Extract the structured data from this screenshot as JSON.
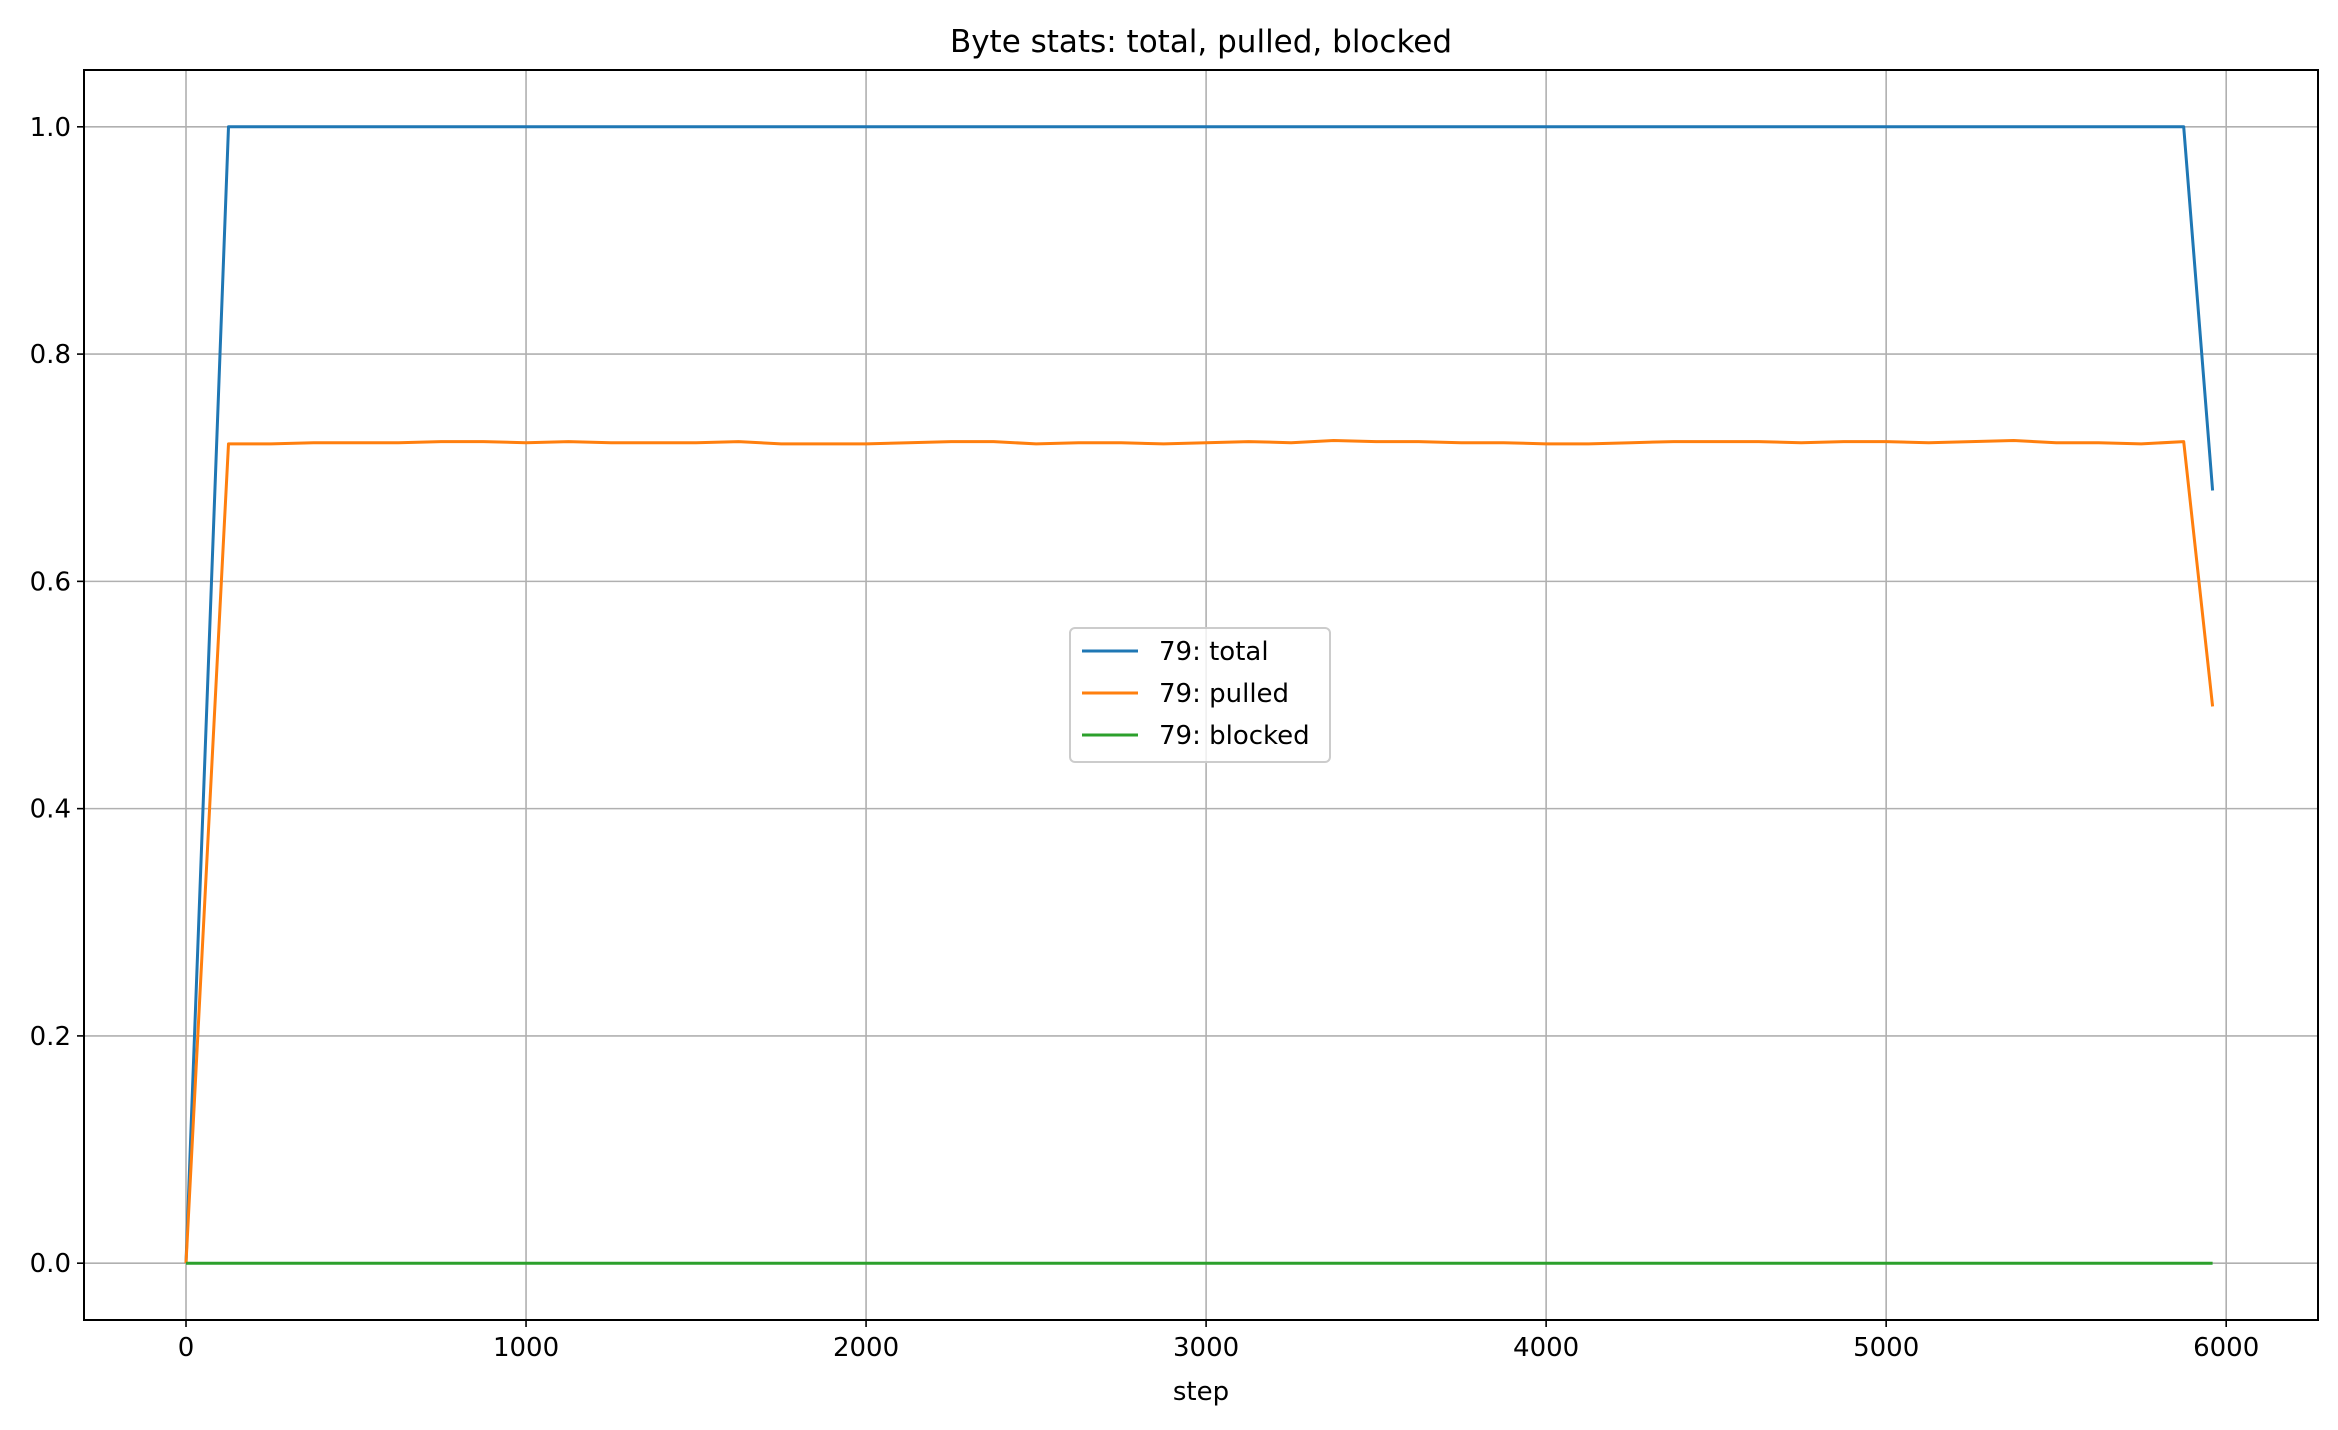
{
  "chart_data": {
    "type": "line",
    "title": "Byte stats: total, pulled, blocked",
    "xlabel": "step",
    "ylabel": "",
    "xlim": [
      -300,
      6270
    ],
    "ylim": [
      -0.05,
      1.05
    ],
    "x_ticks": [
      0,
      1000,
      2000,
      3000,
      4000,
      5000,
      6000
    ],
    "x_tick_labels": [
      "0",
      "1000",
      "2000",
      "3000",
      "4000",
      "5000",
      "6000"
    ],
    "y_ticks": [
      0.0,
      0.2,
      0.4,
      0.6,
      0.8,
      1.0
    ],
    "y_tick_labels": [
      "0.0",
      "0.2",
      "0.4",
      "0.6",
      "0.8",
      "1.0"
    ],
    "grid": true,
    "legend_position": "center",
    "series": [
      {
        "name": "79: total",
        "color": "#1f77b4",
        "x": [
          0,
          125,
          500,
          1000,
          2000,
          3000,
          4000,
          5000,
          5875,
          5960
        ],
        "y": [
          0.0,
          1.0,
          1.0,
          1.0,
          1.0,
          1.0,
          1.0,
          1.0,
          1.0,
          0.68
        ]
      },
      {
        "name": "79: pulled",
        "color": "#ff7f0e",
        "x": [
          0,
          125,
          250,
          375,
          500,
          625,
          750,
          875,
          1000,
          1125,
          1250,
          1375,
          1500,
          1625,
          1750,
          1875,
          2000,
          2125,
          2250,
          2375,
          2500,
          2625,
          2750,
          2875,
          3000,
          3125,
          3250,
          3375,
          3500,
          3625,
          3750,
          3875,
          4000,
          4125,
          4250,
          4375,
          4500,
          4625,
          4750,
          4875,
          5000,
          5125,
          5250,
          5375,
          5500,
          5625,
          5750,
          5875,
          5960
        ],
        "y": [
          0.0,
          0.721,
          0.721,
          0.722,
          0.722,
          0.722,
          0.723,
          0.723,
          0.722,
          0.723,
          0.722,
          0.722,
          0.722,
          0.723,
          0.721,
          0.721,
          0.721,
          0.722,
          0.723,
          0.723,
          0.721,
          0.722,
          0.722,
          0.721,
          0.722,
          0.723,
          0.722,
          0.724,
          0.723,
          0.723,
          0.722,
          0.722,
          0.721,
          0.721,
          0.722,
          0.723,
          0.723,
          0.723,
          0.722,
          0.723,
          0.723,
          0.722,
          0.723,
          0.724,
          0.722,
          0.722,
          0.721,
          0.723,
          0.49
        ]
      },
      {
        "name": "79: blocked",
        "color": "#2ca02c",
        "x": [
          0,
          1000,
          2000,
          3000,
          4000,
          5000,
          5960
        ],
        "y": [
          0.0,
          0.0,
          0.0,
          0.0,
          0.0,
          0.0,
          0.0
        ]
      }
    ]
  }
}
